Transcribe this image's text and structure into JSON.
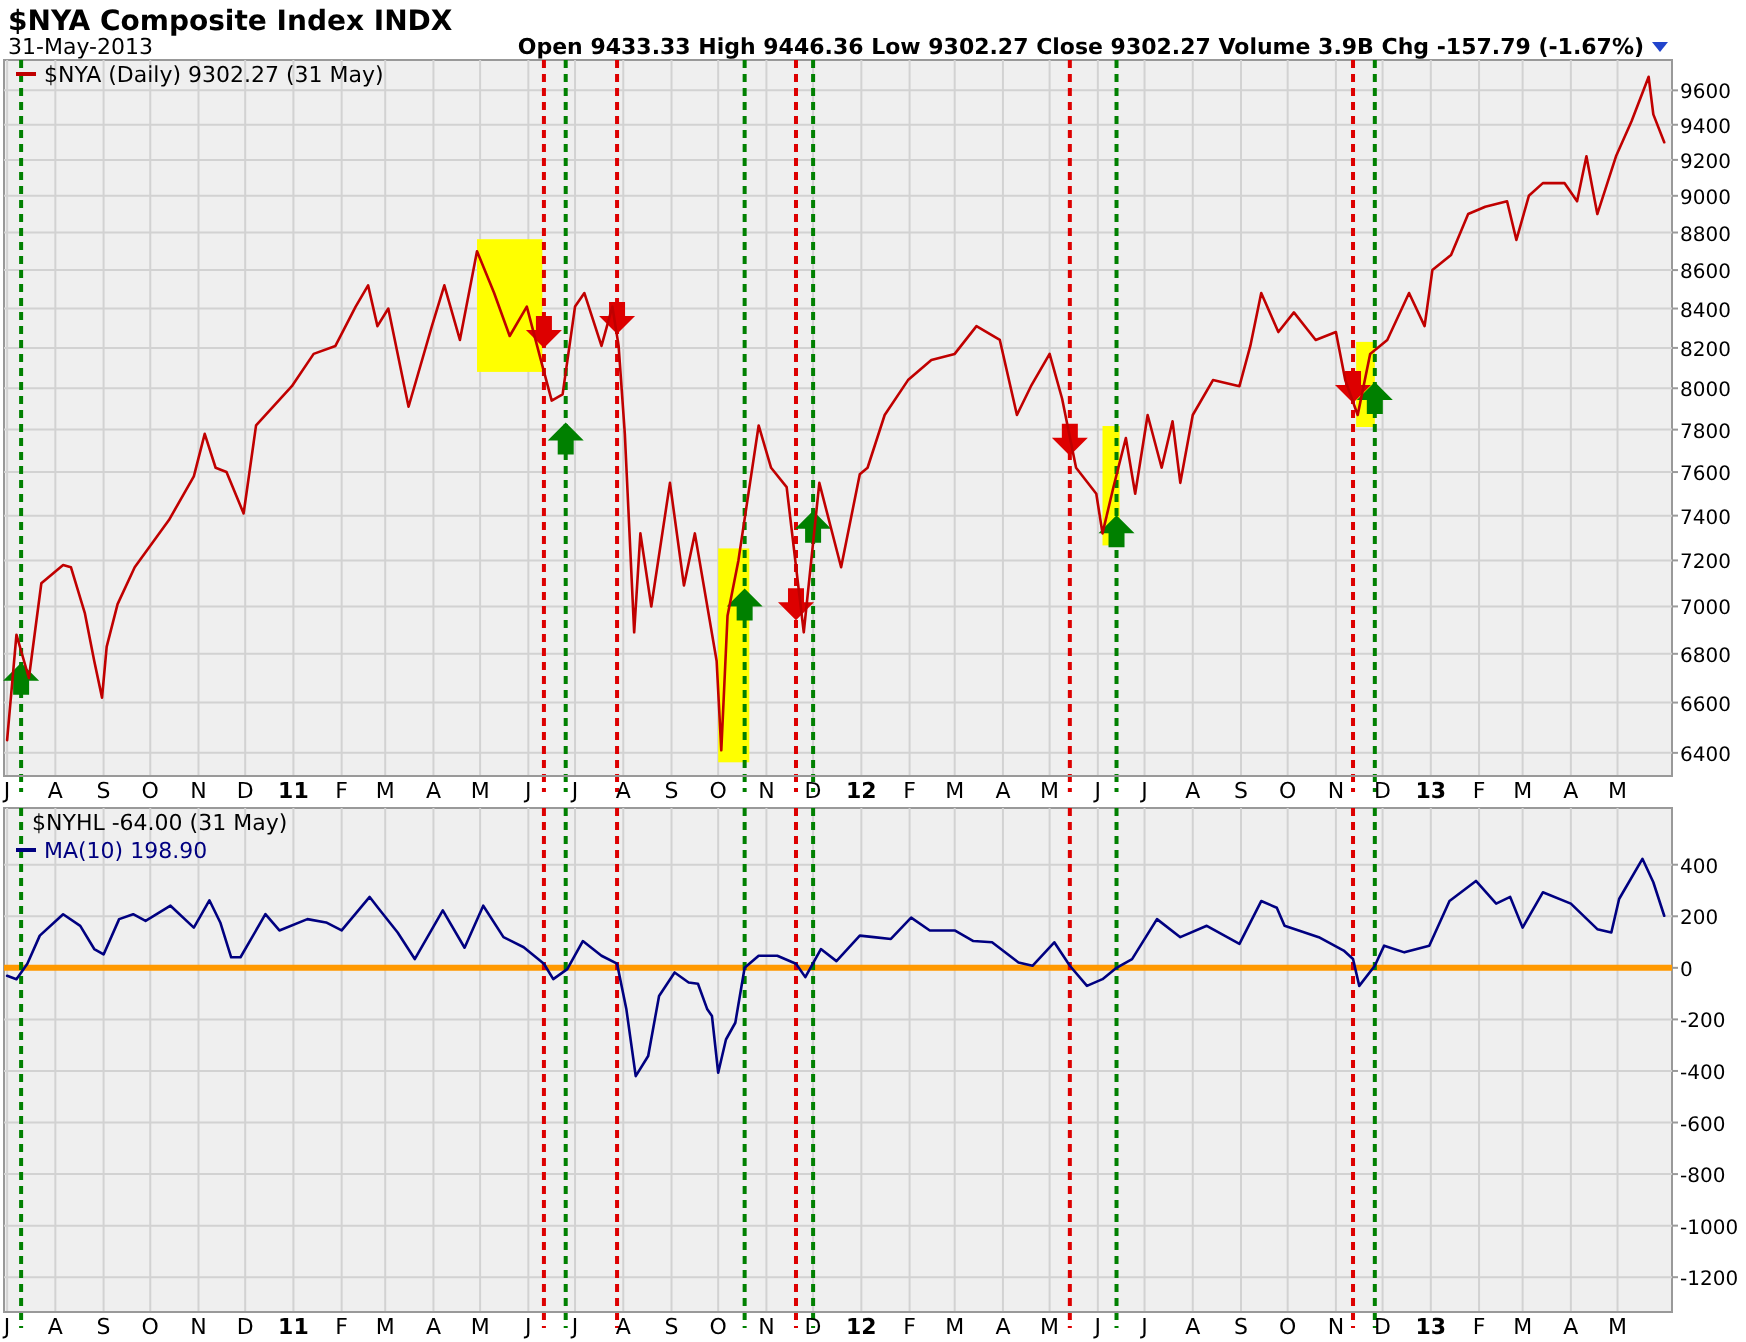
{
  "chart_data": [
    {
      "type": "line",
      "title": "$NYA Composite Index INDX",
      "subtitle": "31-May-2013",
      "annotations": [
        "Open 9433.33  High 9446.36  Low 9302.27  Close 9302.27  Volume 3.9B  Chg -157.79 (-1.67%)"
      ],
      "legend": "top left",
      "grid": true,
      "log": "y",
      "xlim": [
        "2010-06-29",
        "2013-06-05"
      ],
      "ylim": [
        6310,
        9780
      ],
      "xticks": [
        {
          "value": "2010-07-01",
          "label": "J"
        },
        {
          "value": "2010-08-01",
          "label": "A"
        },
        {
          "value": "2010-09-01",
          "label": "S"
        },
        {
          "value": "2010-10-01",
          "label": "O"
        },
        {
          "value": "2010-11-01",
          "label": "N"
        },
        {
          "value": "2010-12-01",
          "label": "D"
        },
        {
          "value": "2011-01-01",
          "label": "11"
        },
        {
          "value": "2011-02-01",
          "label": "F"
        },
        {
          "value": "2011-03-01",
          "label": "M"
        },
        {
          "value": "2011-04-01",
          "label": "A"
        },
        {
          "value": "2011-05-01",
          "label": "M"
        },
        {
          "value": "2011-06-01",
          "label": "J"
        },
        {
          "value": "2011-07-01",
          "label": "J"
        },
        {
          "value": "2011-08-01",
          "label": "A"
        },
        {
          "value": "2011-09-01",
          "label": "S"
        },
        {
          "value": "2011-10-01",
          "label": "O"
        },
        {
          "value": "2011-11-01",
          "label": "N"
        },
        {
          "value": "2011-12-01",
          "label": "D"
        },
        {
          "value": "2012-01-01",
          "label": "12"
        },
        {
          "value": "2012-02-01",
          "label": "F"
        },
        {
          "value": "2012-03-01",
          "label": "M"
        },
        {
          "value": "2012-04-01",
          "label": "A"
        },
        {
          "value": "2012-05-01",
          "label": "M"
        },
        {
          "value": "2012-06-01",
          "label": "J"
        },
        {
          "value": "2012-07-01",
          "label": "J"
        },
        {
          "value": "2012-08-01",
          "label": "A"
        },
        {
          "value": "2012-09-01",
          "label": "S"
        },
        {
          "value": "2012-10-01",
          "label": "O"
        },
        {
          "value": "2012-11-01",
          "label": "N"
        },
        {
          "value": "2012-12-01",
          "label": "D"
        },
        {
          "value": "2013-01-01",
          "label": "13"
        },
        {
          "value": "2013-02-01",
          "label": "F"
        },
        {
          "value": "2013-03-01",
          "label": "M"
        },
        {
          "value": "2013-04-01",
          "label": "A"
        },
        {
          "value": "2013-05-01",
          "label": "M"
        }
      ],
      "yticks": [
        6400,
        6600,
        6800,
        7000,
        7200,
        7400,
        7600,
        7800,
        8000,
        8200,
        8400,
        8600,
        8800,
        9000,
        9200,
        9400,
        9600
      ],
      "bands": [
        {
          "axis": "x",
          "from": "2011-04-29",
          "to": "2011-06-10",
          "color": "#ffff00"
        },
        {
          "axis": "x",
          "from": "2011-10-01",
          "to": "2011-10-21",
          "color": "#ffff00"
        },
        {
          "axis": "x",
          "from": "2012-06-04",
          "to": "2012-06-15",
          "color": "#ffff00"
        },
        {
          "axis": "x",
          "from": "2012-11-14",
          "to": "2012-11-26",
          "color": "#ffff00"
        }
      ],
      "ref_lines": [
        {
          "axis": "x",
          "value": "2010-07-10",
          "color": "#008000",
          "line_style": "dashed"
        },
        {
          "axis": "x",
          "value": "2011-06-11",
          "color": "#dd0000",
          "line_style": "dashed"
        },
        {
          "axis": "x",
          "value": "2011-06-25",
          "color": "#008000",
          "line_style": "dashed"
        },
        {
          "axis": "x",
          "value": "2011-07-28",
          "color": "#dd0000",
          "line_style": "dashed"
        },
        {
          "axis": "x",
          "value": "2011-10-18",
          "color": "#008000",
          "line_style": "dashed"
        },
        {
          "axis": "x",
          "value": "2011-11-20",
          "color": "#dd0000",
          "line_style": "dashed"
        },
        {
          "axis": "x",
          "value": "2011-12-01",
          "color": "#008000",
          "line_style": "dashed"
        },
        {
          "axis": "x",
          "value": "2012-05-14",
          "color": "#dd0000",
          "line_style": "dashed"
        },
        {
          "axis": "x",
          "value": "2012-06-13",
          "color": "#008000",
          "line_style": "dashed"
        },
        {
          "axis": "x",
          "value": "2012-11-12",
          "color": "#dd0000",
          "line_style": "dashed"
        },
        {
          "axis": "x",
          "value": "2012-11-26",
          "color": "#008000",
          "line_style": "dashed"
        }
      ],
      "series": [
        {
          "name": "$NYA (Daily) 9302.27 (31 May)",
          "color": "#c00000",
          "x": [
            "2010-07-01",
            "2010-07-07",
            "2010-07-15",
            "2010-07-23",
            "2010-08-06",
            "2010-08-11",
            "2010-08-20",
            "2010-08-26",
            "2010-08-31",
            "2010-09-03",
            "2010-09-10",
            "2010-09-21",
            "2010-10-13",
            "2010-10-29",
            "2010-11-05",
            "2010-11-12",
            "2010-11-19",
            "2010-11-30",
            "2010-12-08",
            "2010-12-31",
            "2011-01-14",
            "2011-01-28",
            "2011-02-10",
            "2011-02-18",
            "2011-02-24",
            "2011-03-03",
            "2011-03-16",
            "2011-03-31",
            "2011-04-08",
            "2011-04-18",
            "2011-04-29",
            "2011-05-10",
            "2011-05-20",
            "2011-05-31",
            "2011-06-09",
            "2011-06-16",
            "2011-06-23",
            "2011-07-01",
            "2011-07-07",
            "2011-07-18",
            "2011-07-25",
            "2011-07-29",
            "2011-08-02",
            "2011-08-08",
            "2011-08-12",
            "2011-08-19",
            "2011-08-31",
            "2011-09-09",
            "2011-09-16",
            "2011-09-30",
            "2011-10-03",
            "2011-10-07",
            "2011-10-14",
            "2011-10-27",
            "2011-11-04",
            "2011-11-14",
            "2011-11-25",
            "2011-12-05",
            "2011-12-19",
            "2011-12-31",
            "2012-01-05",
            "2012-01-16",
            "2012-01-31",
            "2012-02-15",
            "2012-03-01",
            "2012-03-15",
            "2012-03-30",
            "2012-04-10",
            "2012-04-19",
            "2012-05-01",
            "2012-05-09",
            "2012-05-18",
            "2012-05-31",
            "2012-06-04",
            "2012-06-11",
            "2012-06-19",
            "2012-06-25",
            "2012-07-03",
            "2012-07-12",
            "2012-07-19",
            "2012-07-24",
            "2012-08-01",
            "2012-08-14",
            "2012-08-31",
            "2012-09-07",
            "2012-09-14",
            "2012-09-25",
            "2012-10-05",
            "2012-10-19",
            "2012-11-01",
            "2012-11-07",
            "2012-11-15",
            "2012-11-23",
            "2012-12-04",
            "2012-12-18",
            "2012-12-28",
            "2013-01-02",
            "2013-01-14",
            "2013-01-25",
            "2013-02-05",
            "2013-02-19",
            "2013-02-25",
            "2013-03-05",
            "2013-03-14",
            "2013-03-28",
            "2013-04-05",
            "2013-04-11",
            "2013-04-18",
            "2013-04-30",
            "2013-05-10",
            "2013-05-21",
            "2013-05-24",
            "2013-05-31"
          ],
          "values": [
            6450,
            6880,
            6700,
            7100,
            7180,
            7170,
            6970,
            6770,
            6620,
            6830,
            7010,
            7170,
            7380,
            7580,
            7780,
            7620,
            7600,
            7410,
            7820,
            8010,
            8170,
            8210,
            8410,
            8520,
            8310,
            8400,
            7910,
            8310,
            8520,
            8240,
            8700,
            8480,
            8260,
            8410,
            8140,
            7940,
            7970,
            8410,
            8480,
            8210,
            8410,
            8210,
            7780,
            6890,
            7320,
            7000,
            7550,
            7090,
            7320,
            6770,
            6410,
            6960,
            7200,
            7820,
            7620,
            7530,
            6890,
            7550,
            7170,
            7590,
            7620,
            7870,
            8040,
            8140,
            8170,
            8310,
            8240,
            7870,
            8010,
            8170,
            7950,
            7620,
            7500,
            7320,
            7530,
            7760,
            7500,
            7870,
            7620,
            7840,
            7550,
            7870,
            8040,
            8010,
            8210,
            8480,
            8280,
            8380,
            8240,
            8280,
            8040,
            7870,
            8170,
            8240,
            8480,
            8310,
            8600,
            8680,
            8900,
            8940,
            8970,
            8760,
            9000,
            9070,
            9070,
            8970,
            9220,
            8900,
            9220,
            9420,
            9680,
            9460,
            9300
          ]
        }
      ]
    },
    {
      "type": "line",
      "annotations": [
        "$NYHL -64.00 (31 May)"
      ],
      "legend": "top left",
      "grid": true,
      "xlim": [
        "2010-06-29",
        "2013-06-05"
      ],
      "ylim": [
        -1335,
        620
      ],
      "xticks": [
        {
          "value": "2010-07-01",
          "label": "J"
        },
        {
          "value": "2010-08-01",
          "label": "A"
        },
        {
          "value": "2010-09-01",
          "label": "S"
        },
        {
          "value": "2010-10-01",
          "label": "O"
        },
        {
          "value": "2010-11-01",
          "label": "N"
        },
        {
          "value": "2010-12-01",
          "label": "D"
        },
        {
          "value": "2011-01-01",
          "label": "11"
        },
        {
          "value": "2011-02-01",
          "label": "F"
        },
        {
          "value": "2011-03-01",
          "label": "M"
        },
        {
          "value": "2011-04-01",
          "label": "A"
        },
        {
          "value": "2011-05-01",
          "label": "M"
        },
        {
          "value": "2011-06-01",
          "label": "J"
        },
        {
          "value": "2011-07-01",
          "label": "J"
        },
        {
          "value": "2011-08-01",
          "label": "A"
        },
        {
          "value": "2011-09-01",
          "label": "S"
        },
        {
          "value": "2011-10-01",
          "label": "O"
        },
        {
          "value": "2011-11-01",
          "label": "N"
        },
        {
          "value": "2011-12-01",
          "label": "D"
        },
        {
          "value": "2012-01-01",
          "label": "12"
        },
        {
          "value": "2012-02-01",
          "label": "F"
        },
        {
          "value": "2012-03-01",
          "label": "M"
        },
        {
          "value": "2012-04-01",
          "label": "A"
        },
        {
          "value": "2012-05-01",
          "label": "M"
        },
        {
          "value": "2012-06-01",
          "label": "J"
        },
        {
          "value": "2012-07-01",
          "label": "J"
        },
        {
          "value": "2012-08-01",
          "label": "A"
        },
        {
          "value": "2012-09-01",
          "label": "S"
        },
        {
          "value": "2012-10-01",
          "label": "O"
        },
        {
          "value": "2012-11-01",
          "label": "N"
        },
        {
          "value": "2012-12-01",
          "label": "D"
        },
        {
          "value": "2013-01-01",
          "label": "13"
        },
        {
          "value": "2013-02-01",
          "label": "F"
        },
        {
          "value": "2013-03-01",
          "label": "M"
        },
        {
          "value": "2013-04-01",
          "label": "A"
        },
        {
          "value": "2013-05-01",
          "label": "M"
        }
      ],
      "yticks": [
        -1200,
        -1000,
        -800,
        -600,
        -400,
        -200,
        0,
        200,
        400
      ],
      "ref_lines": [
        {
          "axis": "y",
          "value": 0,
          "color": "#ff9900",
          "line_style": "solid"
        },
        {
          "axis": "x",
          "value": "2010-07-10",
          "color": "#008000",
          "line_style": "dashed"
        },
        {
          "axis": "x",
          "value": "2011-06-11",
          "color": "#dd0000",
          "line_style": "dashed"
        },
        {
          "axis": "x",
          "value": "2011-06-25",
          "color": "#008000",
          "line_style": "dashed"
        },
        {
          "axis": "x",
          "value": "2011-07-28",
          "color": "#dd0000",
          "line_style": "dashed"
        },
        {
          "axis": "x",
          "value": "2011-10-18",
          "color": "#008000",
          "line_style": "dashed"
        },
        {
          "axis": "x",
          "value": "2011-11-20",
          "color": "#dd0000",
          "line_style": "dashed"
        },
        {
          "axis": "x",
          "value": "2011-12-01",
          "color": "#008000",
          "line_style": "dashed"
        },
        {
          "axis": "x",
          "value": "2012-05-14",
          "color": "#dd0000",
          "line_style": "dashed"
        },
        {
          "axis": "x",
          "value": "2012-06-13",
          "color": "#008000",
          "line_style": "dashed"
        },
        {
          "axis": "x",
          "value": "2012-11-12",
          "color": "#dd0000",
          "line_style": "dashed"
        },
        {
          "axis": "x",
          "value": "2012-11-26",
          "color": "#008000",
          "line_style": "dashed"
        }
      ],
      "series": [
        {
          "name": "MA(10) 198.90",
          "color": "#000080",
          "x": [
            "2010-07-01",
            "2010-07-07",
            "2010-07-14",
            "2010-07-22",
            "2010-08-06",
            "2010-08-17",
            "2010-08-26",
            "2010-09-01",
            "2010-09-11",
            "2010-09-20",
            "2010-09-28",
            "2010-10-14",
            "2010-10-29",
            "2010-11-08",
            "2010-11-15",
            "2010-11-22",
            "2010-11-28",
            "2010-12-14",
            "2010-12-23",
            "2011-01-10",
            "2011-01-22",
            "2011-02-01",
            "2011-02-19",
            "2011-02-25",
            "2011-03-09",
            "2011-03-20",
            "2011-04-07",
            "2011-04-21",
            "2011-05-03",
            "2011-05-16",
            "2011-05-29",
            "2011-06-11",
            "2011-06-17",
            "2011-06-26",
            "2011-07-06",
            "2011-07-18",
            "2011-07-28",
            "2011-08-03",
            "2011-08-09",
            "2011-08-17",
            "2011-08-24",
            "2011-09-03",
            "2011-09-12",
            "2011-09-18",
            "2011-09-24",
            "2011-09-27",
            "2011-10-01",
            "2011-10-06",
            "2011-10-12",
            "2011-10-18",
            "2011-10-27",
            "2011-11-08",
            "2011-11-20",
            "2011-11-26",
            "2011-12-06",
            "2011-12-16",
            "2011-12-31",
            "2012-01-09",
            "2012-01-20",
            "2012-02-02",
            "2012-02-14",
            "2012-03-01",
            "2012-03-13",
            "2012-03-25",
            "2012-04-11",
            "2012-04-20",
            "2012-05-04",
            "2012-05-14",
            "2012-05-25",
            "2012-06-04",
            "2012-06-13",
            "2012-06-23",
            "2012-07-09",
            "2012-07-24",
            "2012-08-10",
            "2012-08-31",
            "2012-09-14",
            "2012-09-24",
            "2012-09-29",
            "2012-10-21",
            "2012-11-06",
            "2012-11-12",
            "2012-11-16",
            "2012-11-26",
            "2012-12-02",
            "2012-12-15",
            "2012-12-31",
            "2013-01-13",
            "2013-01-30",
            "2013-02-12",
            "2013-02-21",
            "2013-03-01",
            "2013-03-14",
            "2013-04-01",
            "2013-04-18",
            "2013-04-27",
            "2013-05-02",
            "2013-05-17",
            "2013-05-24",
            "2013-05-31"
          ],
          "values": [
            -31,
            -44,
            16,
            125,
            208,
            163,
            73,
            52,
            189,
            208,
            182,
            241,
            156,
            262,
            176,
            41,
            41,
            208,
            145,
            189,
            176,
            145,
            275,
            228,
            137,
            34,
            223,
            78,
            241,
            119,
            80,
            16,
            -44,
            -5,
            104,
            47,
            16,
            -161,
            -420,
            -342,
            -109,
            -18,
            -57,
            -62,
            -161,
            -187,
            -407,
            -278,
            -213,
            0,
            47,
            47,
            16,
            -36,
            73,
            26,
            125,
            119,
            112,
            195,
            145,
            145,
            104,
            99,
            21,
            8,
            99,
            8,
            -70,
            -44,
            0,
            34,
            189,
            119,
            163,
            93,
            259,
            233,
            163,
            119,
            67,
            34,
            -70,
            8,
            86,
            60,
            86,
            259,
            337,
            249,
            275,
            156,
            293,
            249,
            150,
            137,
            267,
            423,
            332,
            202
          ]
        }
      ]
    }
  ]
}
